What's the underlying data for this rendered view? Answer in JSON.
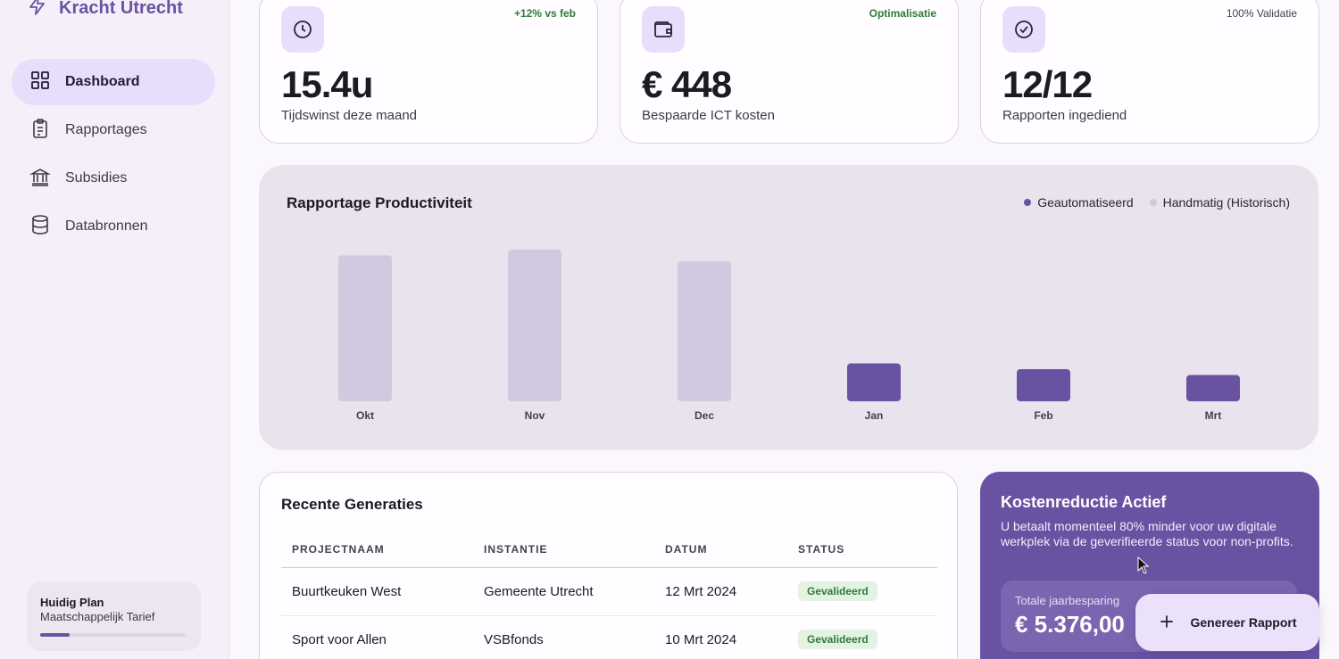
{
  "brand": {
    "name": "Kracht Utrecht",
    "icon": "lightning-icon"
  },
  "sidebar": {
    "items": [
      {
        "label": "Dashboard",
        "icon": "grid-icon",
        "active": true
      },
      {
        "label": "Rapportages",
        "icon": "clipboard-icon",
        "active": false
      },
      {
        "label": "Subsidies",
        "icon": "bank-icon",
        "active": false
      },
      {
        "label": "Databronnen",
        "icon": "database-icon",
        "active": false
      }
    ],
    "plan": {
      "title": "Huidig Plan",
      "subtitle": "Maatschappelijk Tarief",
      "progress": 0.2
    }
  },
  "stats": [
    {
      "icon": "clock-icon",
      "badge": "+12% vs feb",
      "value": "15.4u",
      "label": "Tijdswinst deze maand"
    },
    {
      "icon": "wallet-icon",
      "badge": "Optimalisatie",
      "value": "€ 448",
      "label": "Bespaarde ICT kosten"
    },
    {
      "icon": "check-circle-icon",
      "badge": "100% Validatie",
      "value": "12/12",
      "label": "Rapporten ingediend"
    }
  ],
  "chart_data": {
    "type": "bar",
    "title": "Rapportage Productiviteit",
    "categories": [
      "Okt",
      "Nov",
      "Dec",
      "Jan",
      "Feb",
      "Mrt"
    ],
    "series": [
      {
        "name": "Geautomatiseerd",
        "color": "#6a52a3",
        "values": [
          null,
          null,
          null,
          26,
          22,
          18
        ]
      },
      {
        "name": "Handmatig (Historisch)",
        "color": "#d1c9e0",
        "values": [
          100,
          104,
          96,
          null,
          null,
          null
        ]
      }
    ],
    "ylim": [
      0,
      110
    ],
    "legend": "top-right",
    "grid": false
  },
  "table": {
    "title": "Recente Generaties",
    "columns": [
      "PROJECTNAAM",
      "INSTANTIE",
      "DATUM",
      "STATUS"
    ],
    "rows": [
      [
        "Buurtkeuken West",
        "Gemeente Utrecht",
        "12 Mrt 2024",
        "Gevalideerd"
      ],
      [
        "Sport voor Allen",
        "VSBfonds",
        "10 Mrt 2024",
        "Gevalideerd"
      ]
    ]
  },
  "promo": {
    "title": "Kostenreductie Actief",
    "description": "U betaalt momenteel 80% minder voor uw digitale werkplek via de geverifieerde status voor non-profits.",
    "savings_label": "Totale jaarbesparing",
    "savings_value": "€ 5.376,00"
  },
  "fab": {
    "label": "Genereer Rapport",
    "icon": "plus-icon"
  },
  "colors": {
    "accent": "#6a52a3",
    "accent_light": "#e8ddfb",
    "success": "#2f7a3a"
  }
}
